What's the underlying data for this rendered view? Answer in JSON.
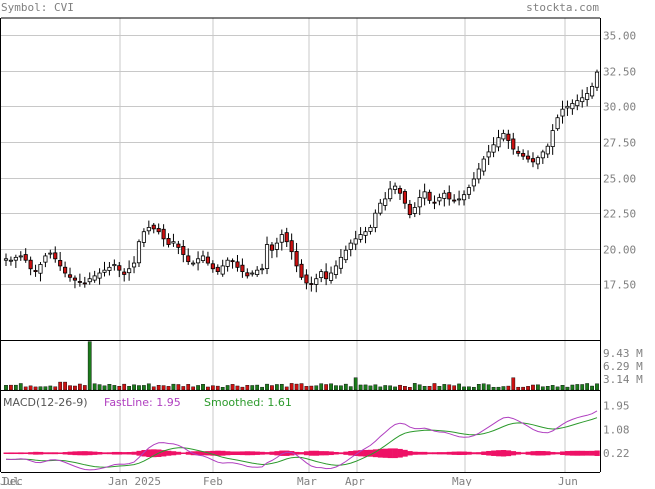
{
  "header": {
    "symbol_text": "Symbol: CVI",
    "brand": "stockta.com"
  },
  "macd": {
    "label": "MACD(12-26-9)",
    "fastline_label": "FastLine: 1.95",
    "smoothed_label": "Smoothed: 1.61",
    "fast_color": "#b040c0",
    "smooth_color": "#2c9a2c",
    "hist_color": "#ee1166"
  },
  "colors": {
    "up": "#ffffff",
    "down": "#cc1111",
    "vol_up": "#1b7a1b",
    "vol_down": "#cc1111",
    "grid": "#c8c8c8",
    "text": "#808080"
  },
  "chart_data": [
    {
      "type": "candlestick",
      "title": "",
      "x_labels": [
        "Dec",
        "Jan 2025",
        "Feb",
        "Mar",
        "Apr",
        "May",
        "Jun",
        "Jul"
      ],
      "y_ticks": [
        "17.50",
        "20.00",
        "22.50",
        "25.00",
        "27.50",
        "30.00",
        "32.50",
        "35.00"
      ],
      "ylim": [
        13.6,
        36.2
      ],
      "grid": true,
      "closes": [
        19.3,
        19.2,
        19.4,
        19.5,
        19.2,
        18.6,
        18.4,
        18.9,
        19.5,
        19.7,
        19.3,
        18.8,
        18.3,
        18.0,
        17.8,
        17.7,
        17.6,
        17.9,
        18.1,
        18.3,
        18.5,
        18.7,
        18.9,
        18.5,
        18.2,
        18.6,
        19.0,
        20.5,
        21.2,
        21.5,
        21.4,
        21.2,
        20.7,
        20.3,
        20.5,
        20.1,
        19.6,
        19.1,
        19.0,
        19.3,
        19.5,
        19.0,
        18.6,
        18.4,
        18.8,
        19.2,
        19.1,
        18.7,
        18.4,
        18.1,
        18.3,
        18.5,
        18.6,
        20.3,
        19.9,
        20.4,
        21.0,
        20.5,
        19.8,
        18.8,
        18.0,
        17.6,
        17.5,
        17.9,
        18.4,
        17.9,
        18.3,
        18.8,
        19.4,
        19.9,
        20.4,
        20.7,
        21.0,
        21.2,
        21.5,
        22.5,
        23.2,
        23.5,
        24.2,
        24.4,
        23.9,
        23.2,
        22.4,
        22.9,
        23.6,
        24.0,
        23.4,
        23.2,
        23.6,
        23.9,
        23.5,
        23.4,
        23.5,
        23.8,
        24.3,
        24.9,
        25.6,
        26.3,
        26.8,
        27.3,
        27.8,
        28.1,
        27.6,
        27.0,
        26.7,
        26.5,
        26.3,
        26.1,
        26.4,
        26.8,
        27.2,
        28.3,
        29.2,
        29.8,
        30.0,
        30.2,
        30.4,
        30.6,
        30.9,
        31.4,
        32.4
      ],
      "volume_axis": [
        "9.43 M",
        "6.29 M",
        "3.14 M"
      ],
      "volume_spike_index": 17
    },
    {
      "type": "line",
      "title": "MACD(12-26-9)",
      "y_ticks": [
        "1.95",
        "1.08",
        "0.22"
      ],
      "ylim": [
        -0.35,
        2.4
      ],
      "fastline_last": 1.95,
      "smoothed_last": 1.61
    }
  ]
}
